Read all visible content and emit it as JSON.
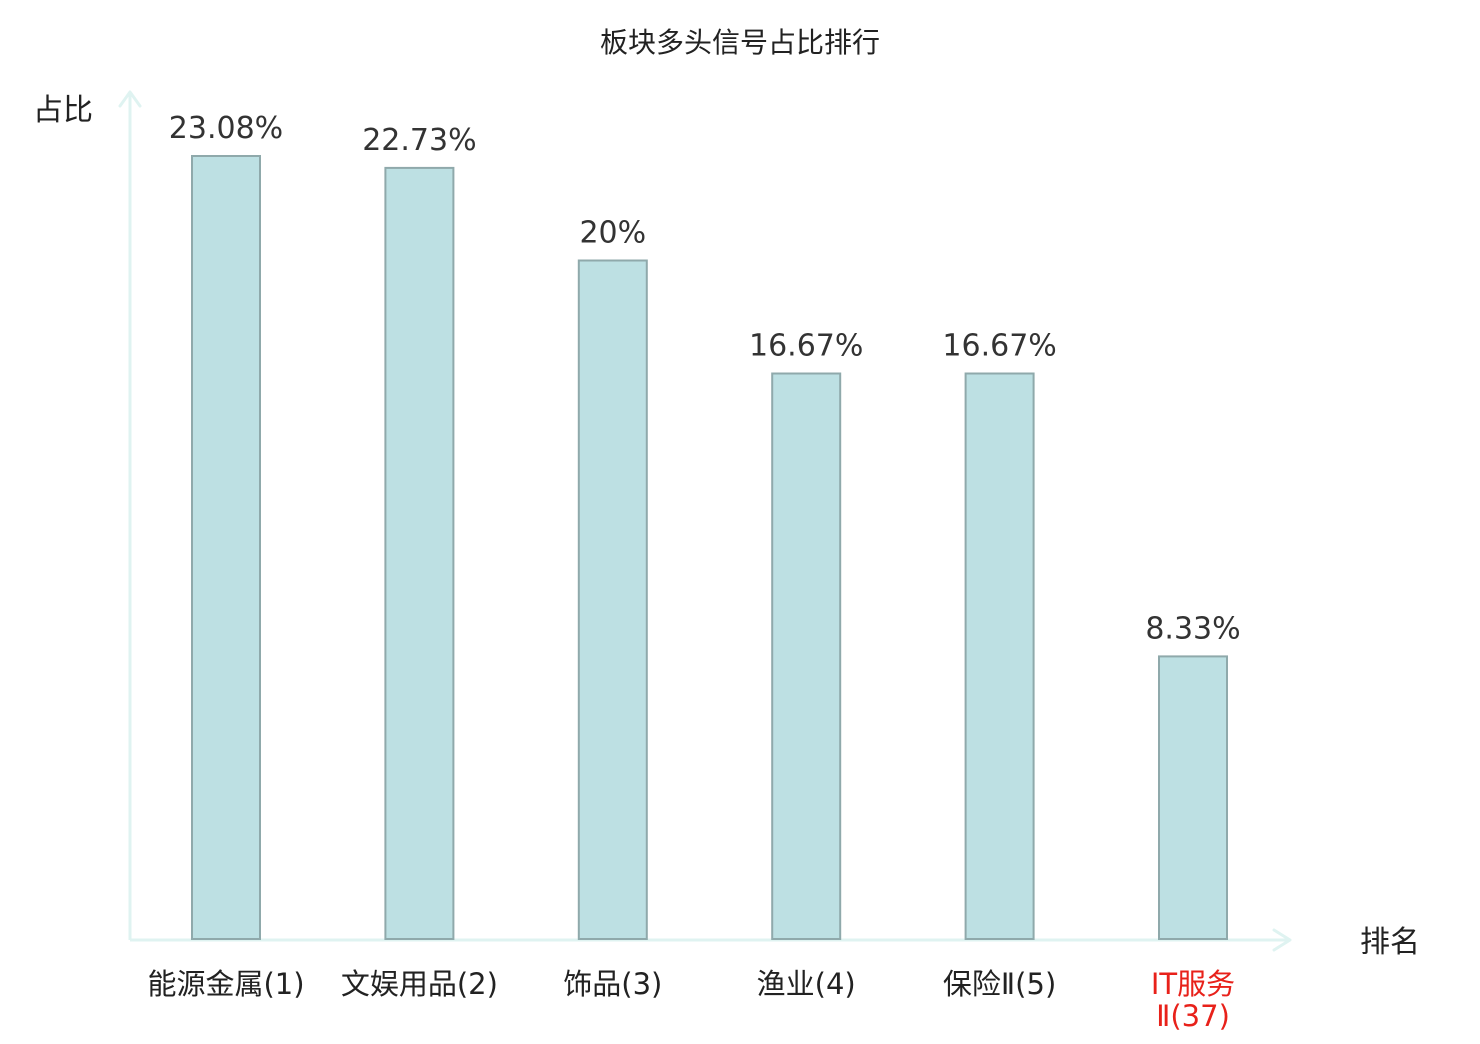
{
  "chart_data": {
    "type": "bar",
    "title": "板块多头信号占比排行",
    "xlabel": "排名",
    "ylabel": "占比",
    "categories": [
      "能源金属(1)",
      "文娱用品(2)",
      "饰品(3)",
      "渔业(4)",
      "保险Ⅱ(5)",
      "IT服务Ⅱ(37)"
    ],
    "category_lines": [
      [
        "能源金属(1)"
      ],
      [
        "文娱用品(2)"
      ],
      [
        "饰品(3)"
      ],
      [
        "渔业(4)"
      ],
      [
        "保险Ⅱ(5)"
      ],
      [
        "IT服务",
        "Ⅱ(37)"
      ]
    ],
    "values": [
      23.08,
      22.73,
      20,
      16.67,
      16.67,
      8.33
    ],
    "value_labels": [
      "23.08%",
      "22.73%",
      "20%",
      "16.67%",
      "16.67%",
      "8.33%"
    ],
    "highlight_index": 5,
    "ylim": [
      0,
      23.08
    ],
    "grid": false,
    "legend": "none",
    "colors": {
      "bar_fill": "#bde0e3",
      "bar_stroke": "#8fa9ab",
      "axis": "#dff3f1",
      "highlight_text": "#e8211a",
      "text": "#222222"
    }
  }
}
